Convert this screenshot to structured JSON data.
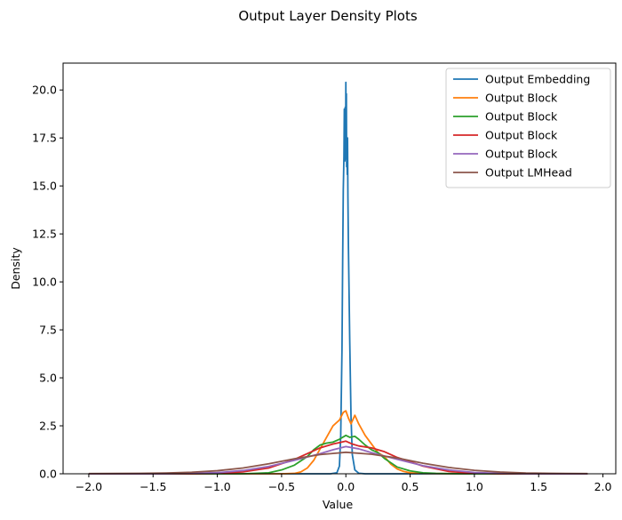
{
  "chart_data": {
    "type": "line",
    "title": "Output Layer Density Plots",
    "xlabel": "Value",
    "ylabel": "Density",
    "xlim": [
      -2.2,
      2.1
    ],
    "ylim": [
      0,
      21.4
    ],
    "xticks": [
      -2.0,
      -1.5,
      -1.0,
      -0.5,
      0.0,
      0.5,
      1.0,
      1.5,
      2.0
    ],
    "xtick_labels": [
      "−2.0",
      "−1.5",
      "−1.0",
      "−0.5",
      "0.0",
      "0.5",
      "1.0",
      "1.5",
      "2.0"
    ],
    "yticks": [
      0,
      2.5,
      5,
      7.5,
      10,
      12.5,
      15,
      17.5,
      20
    ],
    "ytick_labels": [
      "0.0",
      "2.5",
      "5.0",
      "7.5",
      "10.0",
      "12.5",
      "15.0",
      "17.5",
      "20.0"
    ],
    "grid": false,
    "legend_position": "top-right",
    "series": [
      {
        "name": "Output Embedding",
        "color": "#1f77b4",
        "x": [
          -2.0,
          -0.12,
          -0.07,
          -0.05,
          -0.04,
          -0.03,
          -0.025,
          -0.02,
          -0.015,
          -0.012,
          -0.008,
          -0.005,
          -0.002,
          0.0,
          0.002,
          0.004,
          0.006,
          0.008,
          0.011,
          0.013,
          0.016,
          0.02,
          0.03,
          0.04,
          0.05,
          0.07,
          0.1,
          0.15,
          1.88
        ],
        "y": [
          0,
          0,
          0.05,
          0.4,
          2.0,
          6.5,
          11.0,
          14.8,
          16.5,
          19.0,
          16.3,
          19.1,
          17.0,
          20.4,
          16.4,
          19.8,
          16.0,
          17.4,
          15.6,
          17.5,
          14.4,
          11.8,
          7.0,
          3.0,
          1.0,
          0.2,
          0.03,
          0,
          0
        ]
      },
      {
        "name": "Output Block",
        "color": "#ff7f0e",
        "x": [
          -2.0,
          -0.5,
          -0.4,
          -0.35,
          -0.3,
          -0.25,
          -0.2,
          -0.15,
          -0.1,
          -0.05,
          -0.02,
          0.0,
          0.02,
          0.04,
          0.07,
          0.1,
          0.15,
          0.2,
          0.25,
          0.3,
          0.35,
          0.4,
          0.45,
          0.5,
          0.6,
          1.88
        ],
        "y": [
          0,
          0,
          0.02,
          0.1,
          0.3,
          0.7,
          1.3,
          1.9,
          2.5,
          2.8,
          3.2,
          3.28,
          2.9,
          2.6,
          3.05,
          2.6,
          2.0,
          1.55,
          1.1,
          0.9,
          0.5,
          0.25,
          0.12,
          0.05,
          0.01,
          0
        ]
      },
      {
        "name": "Output Block",
        "color": "#2ca02c",
        "x": [
          -2.0,
          -0.8,
          -0.6,
          -0.5,
          -0.4,
          -0.3,
          -0.25,
          -0.2,
          -0.15,
          -0.1,
          -0.05,
          0.0,
          0.03,
          0.07,
          0.1,
          0.15,
          0.2,
          0.25,
          0.3,
          0.4,
          0.5,
          0.6,
          0.7,
          0.9,
          1.88
        ],
        "y": [
          0,
          0,
          0.05,
          0.2,
          0.45,
          0.9,
          1.25,
          1.5,
          1.6,
          1.65,
          1.8,
          2.0,
          1.9,
          1.95,
          1.8,
          1.5,
          1.25,
          1.1,
          0.8,
          0.35,
          0.15,
          0.05,
          0.02,
          0,
          0
        ]
      },
      {
        "name": "Output Block",
        "color": "#d62728",
        "x": [
          -2.0,
          -1.2,
          -1.0,
          -0.8,
          -0.6,
          -0.4,
          -0.3,
          -0.2,
          -0.1,
          0.0,
          0.05,
          0.1,
          0.2,
          0.3,
          0.4,
          0.6,
          0.8,
          1.0,
          1.2,
          1.88
        ],
        "y": [
          0,
          0,
          0.02,
          0.1,
          0.3,
          0.75,
          1.05,
          1.35,
          1.55,
          1.7,
          1.55,
          1.45,
          1.35,
          1.15,
          0.85,
          0.4,
          0.12,
          0.03,
          0,
          0
        ]
      },
      {
        "name": "Output Block",
        "color": "#9467bd",
        "x": [
          -2.0,
          -1.4,
          -1.2,
          -1.0,
          -0.8,
          -0.6,
          -0.4,
          -0.2,
          -0.1,
          0.0,
          0.1,
          0.2,
          0.4,
          0.6,
          0.8,
          1.0,
          1.2,
          1.4,
          1.88
        ],
        "y": [
          0,
          0,
          0.02,
          0.06,
          0.17,
          0.38,
          0.7,
          1.05,
          1.25,
          1.42,
          1.3,
          1.1,
          0.75,
          0.42,
          0.2,
          0.07,
          0.02,
          0,
          0
        ]
      },
      {
        "name": "Output LMHead",
        "color": "#8c564b",
        "x": [
          -2.0,
          -1.6,
          -1.4,
          -1.2,
          -1.0,
          -0.8,
          -0.6,
          -0.4,
          -0.2,
          0.0,
          0.2,
          0.4,
          0.6,
          0.8,
          1.0,
          1.2,
          1.4,
          1.6,
          1.88
        ],
        "y": [
          0.01,
          0.02,
          0.04,
          0.08,
          0.16,
          0.3,
          0.52,
          0.78,
          1.0,
          1.12,
          1.02,
          0.82,
          0.55,
          0.33,
          0.18,
          0.09,
          0.04,
          0.02,
          0.01
        ]
      }
    ]
  }
}
